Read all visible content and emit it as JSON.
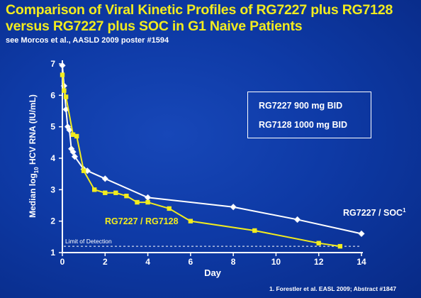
{
  "slide": {
    "title": "Comparison of Viral Kinetic Profiles of RG7227 plus RG7128 versus RG7227 plus SOC in G1 Naive Patients",
    "subtitle": "see Morcos et al., AASLD 2009 poster #1594",
    "footnote": "1. Forestler et al. EASL 2009; Abstract #1847",
    "legend_box": {
      "line1": "RG7227 900 mg BID",
      "line2": "RG7128 1000 mg BID"
    },
    "colors": {
      "title": "#f2ec1e",
      "background": "#0e3aa6",
      "series_soc": "#ffffff",
      "series_rg7128": "#f2ec1e"
    }
  },
  "chart_data": {
    "type": "line",
    "title": "",
    "xlabel": "Day",
    "ylabel_main": "Median log",
    "ylabel_sub": "10",
    "ylabel_tail": " HCV RNA (IU/mL)",
    "xlim": [
      0,
      14
    ],
    "ylim": [
      1,
      7
    ],
    "xticks": [
      0,
      2,
      4,
      6,
      8,
      10,
      12,
      14
    ],
    "yticks": [
      1,
      2,
      3,
      4,
      5,
      6,
      7
    ],
    "grid": false,
    "reference_line": {
      "y": 1.2,
      "label": "Limit of Detection"
    },
    "series": [
      {
        "name": "RG7227 / SOC",
        "name_sup": "1",
        "marker": "diamond",
        "color": "#ffffff",
        "x": [
          0,
          0.08,
          0.17,
          0.25,
          0.33,
          0.42,
          0.5,
          0.58,
          1,
          1.17,
          2,
          4,
          8,
          11,
          14
        ],
        "y": [
          6.95,
          6.3,
          5.55,
          5.0,
          4.9,
          4.3,
          4.2,
          4.05,
          3.65,
          3.6,
          3.35,
          2.75,
          2.45,
          2.05,
          1.6
        ]
      },
      {
        "name": "RG7227 / RG7128",
        "marker": "square",
        "color": "#f2ec1e",
        "x": [
          0,
          0.08,
          0.17,
          0.5,
          0.67,
          1,
          1.5,
          2,
          2.5,
          3,
          3.5,
          4,
          5,
          6,
          9,
          12,
          13
        ],
        "y": [
          6.65,
          6.15,
          5.95,
          4.75,
          4.7,
          3.6,
          3.0,
          2.9,
          2.9,
          2.8,
          2.6,
          2.6,
          2.4,
          2.0,
          1.7,
          1.3,
          1.2
        ]
      }
    ]
  }
}
